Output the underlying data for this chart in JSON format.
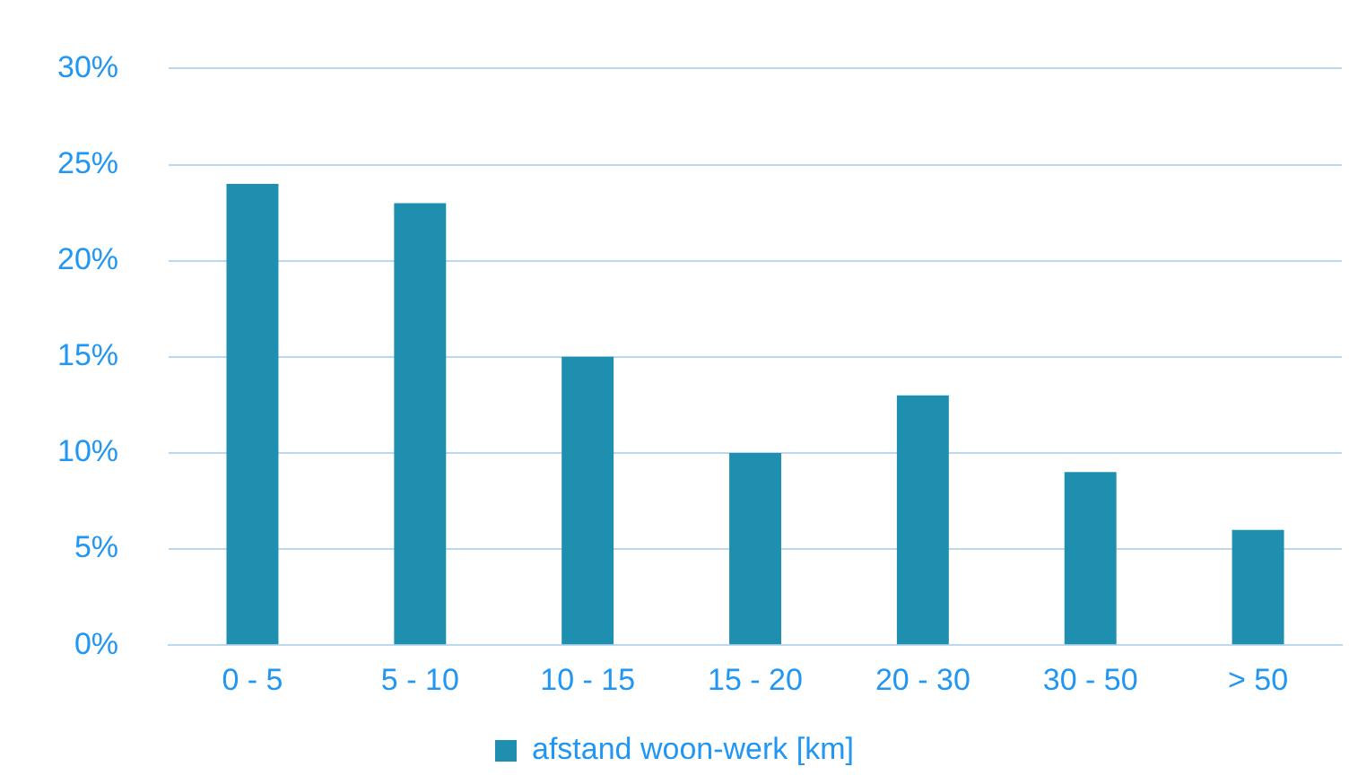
{
  "chart_data": {
    "type": "bar",
    "categories": [
      "0 - 5",
      "5 - 10",
      "10 - 15",
      "15 - 20",
      "20 - 30",
      "30 - 50",
      "> 50"
    ],
    "series": [
      {
        "name": "afstand woon-werk [km]",
        "color": "#1f8fb0",
        "values": [
          24,
          23,
          15,
          10,
          13,
          9,
          6
        ]
      }
    ],
    "ylim": [
      0,
      30
    ],
    "yticks": [
      {
        "value": 0,
        "label": "0%"
      },
      {
        "value": 5,
        "label": "5%"
      },
      {
        "value": 10,
        "label": "10%"
      },
      {
        "value": 15,
        "label": "15%"
      },
      {
        "value": 20,
        "label": "20%"
      },
      {
        "value": 25,
        "label": "25%"
      },
      {
        "value": 30,
        "label": "30%"
      }
    ],
    "grid": "y",
    "legend": "bottom"
  }
}
